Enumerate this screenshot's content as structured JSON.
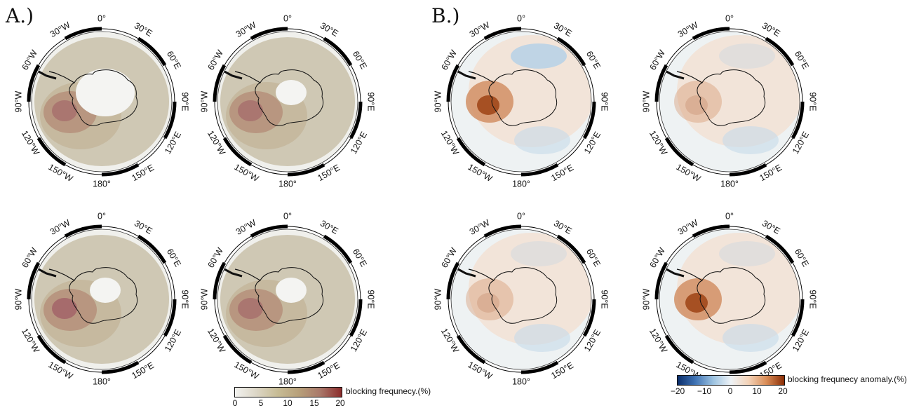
{
  "panels": {
    "a_label": "A.)",
    "b_label": "B.)"
  },
  "longitude_labels": [
    "0°",
    "30°E",
    "60°E",
    "90°E",
    "120°E",
    "150°E",
    "180°",
    "150°W",
    "120°W",
    "90°W",
    "60°W",
    "30°W"
  ],
  "colorbar_freq": {
    "title": "blocking frequnecy.(%)",
    "ticks": [
      "0",
      "5",
      "10",
      "15",
      "20"
    ],
    "colors": [
      "#f2f2ef",
      "#dcd6c6",
      "#c7bc95",
      "#b7a07a",
      "#a9786a",
      "#8c2c2c"
    ]
  },
  "colorbar_anom": {
    "title": "blocking frequnecy anomaly.(%)",
    "ticks": [
      "−20",
      "−10",
      "0",
      "10",
      "20"
    ],
    "colors": [
      "#0b2e6b",
      "#3f73b4",
      "#9cc2e0",
      "#eef3f6",
      "#f3d2b7",
      "#d98c56",
      "#8a2d05"
    ]
  }
}
